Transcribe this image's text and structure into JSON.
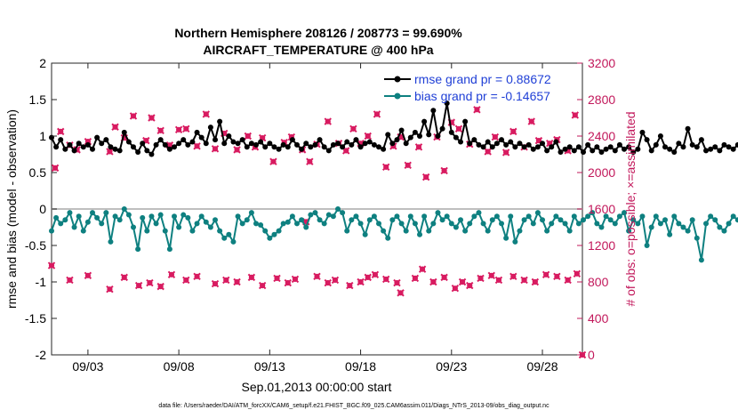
{
  "chart_data": {
    "type": "line",
    "title": "Northern Hemisphere 208126 / 208773 = 99.690%",
    "subtitle": "AIRCRAFT_TEMPERATURE @ 400 hPa",
    "xlabel": "Sep.01,2013 00:00:00 start",
    "ylabel": "rmse and bias (model - observation)",
    "ylabel_right": "# of obs: o=possible; ×=assimilated",
    "footnote": "data file: /Users/raeder/DAI/ATM_forcXX/CAM6_setup/f.e21.FHIST_BGC.f09_025.CAM6assim.011/Diags_NTrS_2013-09/obs_diag_output.nc",
    "xlim": [
      1,
      30.2
    ],
    "x_ticks": [
      3,
      8,
      13,
      18,
      23,
      28
    ],
    "x_tick_labels": [
      "09/03",
      "09/08",
      "09/13",
      "09/18",
      "09/23",
      "09/28"
    ],
    "ylim": [
      -2,
      2
    ],
    "y_ticks": [
      2,
      1.5,
      1,
      0.5,
      0,
      -0.5,
      -1,
      -1.5,
      -2
    ],
    "y_tick_labels": [
      "2",
      "1.5",
      "1",
      "0.5",
      "0",
      "-0.5",
      "-1",
      "-1.5",
      "-2"
    ],
    "ylim_right": [
      0,
      3200
    ],
    "y_right_ticks": [
      3200,
      2800,
      2400,
      2000,
      1600,
      1200,
      800,
      400,
      0
    ],
    "y_right_tick_labels": [
      "3200",
      "2800",
      "2400",
      "2000",
      "1600",
      "1200",
      "800",
      "400",
      "0"
    ],
    "grid": false,
    "legend_position": "top-right",
    "zero_line": 0,
    "colors": {
      "rmse": "#000000",
      "bias": "#0e8080",
      "obs": "#d81b60",
      "right_axis": "#c2185b",
      "legend_text": "#1f3fd6",
      "zero_line": "#bfbfbf"
    },
    "legend": [
      {
        "label": "rmse grand pr = 0.88672",
        "series": "rmse"
      },
      {
        "label": "bias grand pr = -0.14657",
        "series": "bias"
      }
    ],
    "x_start": 1,
    "x_step": 0.25,
    "rmse": [
      0.98,
      0.85,
      0.95,
      0.82,
      0.88,
      0.8,
      0.9,
      0.85,
      0.88,
      0.82,
      0.98,
      0.9,
      0.95,
      0.85,
      0.82,
      0.8,
      1.05,
      0.92,
      0.85,
      0.78,
      0.9,
      0.8,
      0.75,
      0.88,
      0.95,
      0.88,
      0.82,
      0.85,
      0.9,
      0.95,
      0.88,
      0.92,
      1.05,
      0.98,
      0.9,
      1.12,
      0.95,
      1.2,
      0.9,
      1.0,
      0.92,
      0.9,
      0.95,
      0.85,
      0.9,
      0.88,
      0.92,
      0.85,
      0.9,
      0.85,
      0.82,
      0.88,
      0.85,
      0.95,
      0.88,
      0.82,
      0.9,
      0.85,
      0.88,
      0.95,
      0.85,
      0.8,
      0.88,
      0.9,
      0.85,
      0.92,
      0.88,
      0.95,
      0.85,
      0.9,
      0.92,
      0.88,
      0.85,
      0.82,
      1.02,
      0.9,
      0.95,
      1.08,
      0.9,
      0.98,
      1.05,
      1.0,
      1.2,
      1.02,
      1.35,
      1.0,
      1.1,
      1.45,
      1.05,
      0.98,
      0.92,
      1.2,
      0.9,
      0.95,
      0.88,
      0.85,
      0.92,
      0.85,
      0.9,
      0.95,
      0.88,
      0.92,
      0.85,
      0.9,
      0.85,
      0.88,
      0.82,
      0.85,
      0.9,
      0.8,
      0.85,
      0.92,
      0.78,
      0.82,
      0.85,
      0.8,
      0.85,
      0.78,
      0.88,
      0.8,
      0.85,
      0.78,
      0.82,
      0.85,
      0.8,
      0.88,
      0.82,
      0.85,
      0.78,
      0.82,
      1.05,
      0.95,
      0.8,
      0.88,
      1.0,
      0.85,
      0.82,
      0.78,
      0.9,
      0.85,
      1.1,
      0.88,
      0.85,
      0.95,
      0.8,
      0.82,
      0.85,
      0.8,
      0.88,
      0.85,
      0.82,
      0.88,
      0.8,
      0.9,
      0.82,
      0.78,
      0.9,
      0.82,
      1.05,
      0.88,
      0.85,
      0.9,
      0.8,
      0.9,
      0.78,
      0.85,
      0.82,
      0.88,
      0.85,
      0.8,
      0.9,
      0.85,
      0.82,
      0.85,
      0.8,
      0.85,
      0.78,
      0.82,
      0.8,
      0.78,
      0.92,
      0.82,
      0.8,
      0.78,
      0.75,
      0.72,
      0.78,
      0.75
    ],
    "bias": [
      -0.3,
      -0.12,
      -0.2,
      -0.15,
      -0.05,
      -0.25,
      -0.1,
      -0.3,
      -0.18,
      -0.05,
      -0.12,
      -0.2,
      -0.05,
      -0.45,
      -0.1,
      -0.15,
      0.0,
      -0.08,
      -0.25,
      -0.55,
      -0.12,
      -0.3,
      -0.1,
      -0.2,
      -0.08,
      -0.3,
      -0.55,
      -0.1,
      -0.25,
      -0.08,
      -0.12,
      -0.3,
      -0.2,
      -0.1,
      -0.18,
      -0.25,
      -0.15,
      -0.3,
      -0.4,
      -0.35,
      -0.45,
      -0.1,
      -0.2,
      -0.15,
      -0.05,
      -0.2,
      -0.22,
      -0.3,
      -0.4,
      -0.35,
      -0.3,
      -0.2,
      -0.18,
      -0.1,
      -0.2,
      -0.15,
      -0.25,
      -0.08,
      -0.05,
      -0.15,
      -0.2,
      -0.08,
      -0.1,
      0.0,
      -0.05,
      -0.3,
      -0.15,
      -0.1,
      -0.2,
      -0.35,
      -0.15,
      -0.1,
      -0.2,
      -0.3,
      -0.4,
      -0.15,
      -0.1,
      -0.2,
      -0.3,
      -0.1,
      -0.2,
      -0.35,
      -0.1,
      -0.3,
      -0.2,
      -0.05,
      -0.15,
      -0.1,
      -0.2,
      -0.25,
      -0.15,
      -0.3,
      -0.2,
      -0.1,
      -0.05,
      -0.2,
      -0.3,
      -0.15,
      -0.1,
      -0.2,
      -0.4,
      -0.1,
      -0.45,
      -0.3,
      -0.15,
      -0.1,
      -0.2,
      -0.05,
      -0.15,
      -0.3,
      -0.2,
      -0.1,
      -0.15,
      -0.2,
      -0.3,
      -0.1,
      -0.2,
      -0.15,
      -0.1,
      -0.05,
      -0.2,
      -0.25,
      -0.1,
      -0.15,
      -0.2,
      -0.1,
      -0.05,
      -0.3,
      -0.15,
      -0.2,
      -0.1,
      -0.5,
      -0.25,
      -0.1,
      -0.2,
      -0.15,
      -0.35,
      -0.1,
      -0.2,
      -0.25,
      -0.3,
      -0.15,
      -0.4,
      -0.7,
      -0.2,
      -0.1,
      -0.15,
      -0.25,
      -0.3,
      -0.2,
      -0.1,
      -0.15,
      -0.25,
      -0.2,
      -0.1,
      -0.3,
      -0.15,
      -0.2,
      -0.1,
      -0.05,
      -0.2,
      -0.1,
      -0.15,
      -0.25,
      -0.3,
      -0.1,
      -0.2,
      -0.05,
      -0.15,
      -0.1,
      -0.2,
      -0.3,
      -0.15,
      -0.1,
      -0.35,
      -0.2,
      -0.1,
      -0.15,
      -0.05,
      -0.1,
      0.0,
      -0.2,
      -0.1,
      -0.2,
      -0.35,
      0.1,
      0.05,
      -0.1,
      -0.05,
      -0.1
    ],
    "obs_possible": [
      {
        "x": 1.2,
        "y": 2050
      },
      {
        "x": 1.5,
        "y": 2450
      },
      {
        "x": 2.0,
        "y": 2300
      },
      {
        "x": 2.4,
        "y": 2250
      },
      {
        "x": 3.0,
        "y": 2340
      },
      {
        "x": 4.2,
        "y": 2230
      },
      {
        "x": 4.5,
        "y": 2500
      },
      {
        "x": 5.0,
        "y": 2380
      },
      {
        "x": 5.5,
        "y": 2620
      },
      {
        "x": 6.2,
        "y": 2350
      },
      {
        "x": 6.5,
        "y": 2600
      },
      {
        "x": 7.0,
        "y": 2460
      },
      {
        "x": 7.5,
        "y": 2300
      },
      {
        "x": 8.0,
        "y": 2470
      },
      {
        "x": 8.4,
        "y": 2480
      },
      {
        "x": 9.0,
        "y": 2290
      },
      {
        "x": 9.5,
        "y": 2640
      },
      {
        "x": 10.0,
        "y": 2260
      },
      {
        "x": 10.5,
        "y": 2430
      },
      {
        "x": 11.2,
        "y": 2250
      },
      {
        "x": 11.8,
        "y": 2400
      },
      {
        "x": 12.2,
        "y": 2280
      },
      {
        "x": 12.6,
        "y": 2380
      },
      {
        "x": 13.2,
        "y": 2120
      },
      {
        "x": 13.8,
        "y": 2330
      },
      {
        "x": 14.2,
        "y": 2390
      },
      {
        "x": 14.8,
        "y": 2250
      },
      {
        "x": 15.2,
        "y": 2120
      },
      {
        "x": 15.6,
        "y": 2310
      },
      {
        "x": 16.2,
        "y": 2560
      },
      {
        "x": 16.8,
        "y": 2320
      },
      {
        "x": 17.2,
        "y": 2240
      },
      {
        "x": 17.6,
        "y": 2480
      },
      {
        "x": 18.0,
        "y": 2320
      },
      {
        "x": 18.4,
        "y": 2400
      },
      {
        "x": 18.9,
        "y": 2640
      },
      {
        "x": 19.4,
        "y": 2060
      },
      {
        "x": 19.8,
        "y": 2290
      },
      {
        "x": 20.2,
        "y": 2390
      },
      {
        "x": 20.6,
        "y": 2080
      },
      {
        "x": 21.2,
        "y": 2280
      },
      {
        "x": 21.6,
        "y": 1950
      },
      {
        "x": 22.2,
        "y": 2390
      },
      {
        "x": 22.6,
        "y": 2020
      },
      {
        "x": 23.0,
        "y": 2550
      },
      {
        "x": 23.4,
        "y": 2480
      },
      {
        "x": 24.0,
        "y": 2310
      },
      {
        "x": 24.4,
        "y": 2690
      },
      {
        "x": 25.0,
        "y": 2230
      },
      {
        "x": 25.4,
        "y": 2390
      },
      {
        "x": 26.0,
        "y": 2220
      },
      {
        "x": 26.4,
        "y": 2450
      },
      {
        "x": 27.0,
        "y": 2280
      },
      {
        "x": 27.4,
        "y": 2560
      },
      {
        "x": 27.8,
        "y": 2350
      },
      {
        "x": 28.4,
        "y": 2320
      },
      {
        "x": 28.8,
        "y": 2360
      },
      {
        "x": 29.4,
        "y": 2240
      },
      {
        "x": 29.8,
        "y": 2630
      },
      {
        "x": 30.2,
        "y": 0
      },
      {
        "x": 1.0,
        "y": 980
      },
      {
        "x": 2.0,
        "y": 820
      },
      {
        "x": 3.0,
        "y": 870
      },
      {
        "x": 4.2,
        "y": 720
      },
      {
        "x": 5.0,
        "y": 850
      },
      {
        "x": 5.8,
        "y": 760
      },
      {
        "x": 6.4,
        "y": 790
      },
      {
        "x": 7.0,
        "y": 750
      },
      {
        "x": 7.6,
        "y": 880
      },
      {
        "x": 8.4,
        "y": 820
      },
      {
        "x": 9.0,
        "y": 860
      },
      {
        "x": 10.0,
        "y": 780
      },
      {
        "x": 10.6,
        "y": 820
      },
      {
        "x": 11.2,
        "y": 800
      },
      {
        "x": 12.0,
        "y": 850
      },
      {
        "x": 12.6,
        "y": 760
      },
      {
        "x": 13.4,
        "y": 840
      },
      {
        "x": 14.0,
        "y": 790
      },
      {
        "x": 14.4,
        "y": 830
      },
      {
        "x": 15.0,
        "y": 1460
      },
      {
        "x": 15.6,
        "y": 860
      },
      {
        "x": 16.2,
        "y": 790
      },
      {
        "x": 16.6,
        "y": 820
      },
      {
        "x": 17.4,
        "y": 760
      },
      {
        "x": 18.0,
        "y": 800
      },
      {
        "x": 18.4,
        "y": 850
      },
      {
        "x": 18.8,
        "y": 880
      },
      {
        "x": 19.4,
        "y": 830
      },
      {
        "x": 20.0,
        "y": 790
      },
      {
        "x": 20.2,
        "y": 680
      },
      {
        "x": 21.0,
        "y": 840
      },
      {
        "x": 21.4,
        "y": 940
      },
      {
        "x": 22.0,
        "y": 800
      },
      {
        "x": 22.6,
        "y": 850
      },
      {
        "x": 23.2,
        "y": 730
      },
      {
        "x": 23.6,
        "y": 800
      },
      {
        "x": 24.0,
        "y": 760
      },
      {
        "x": 24.6,
        "y": 840
      },
      {
        "x": 25.2,
        "y": 870
      },
      {
        "x": 25.6,
        "y": 820
      },
      {
        "x": 26.4,
        "y": 860
      },
      {
        "x": 27.0,
        "y": 820
      },
      {
        "x": 27.6,
        "y": 800
      },
      {
        "x": 28.2,
        "y": 880
      },
      {
        "x": 28.8,
        "y": 860
      },
      {
        "x": 29.4,
        "y": 820
      },
      {
        "x": 29.9,
        "y": 890
      }
    ]
  }
}
